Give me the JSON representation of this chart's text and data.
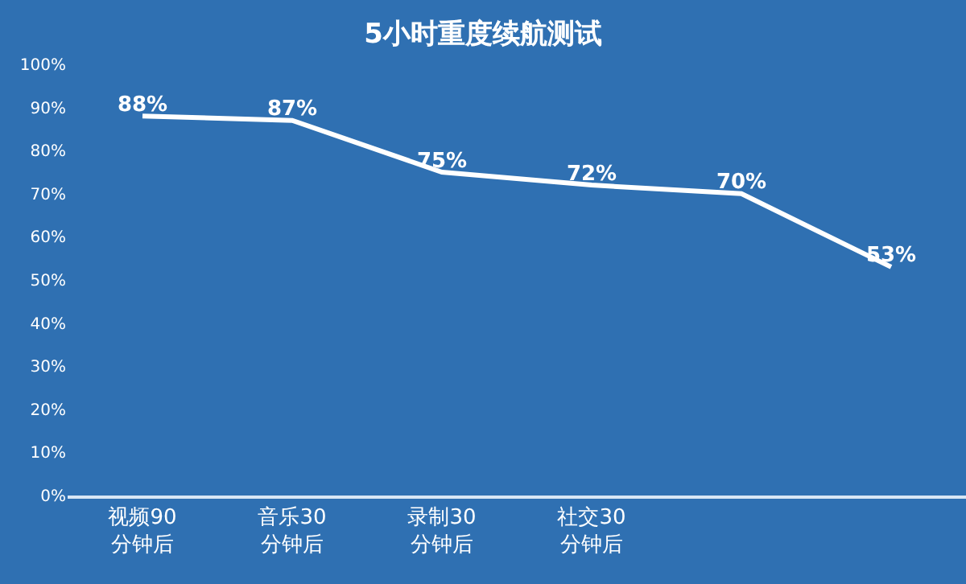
{
  "chart_data": {
    "type": "line",
    "title": "5小时重度续航测试",
    "categories": [
      "视频90\n分钟后",
      "音乐30\n分钟后",
      "录制30\n分钟后",
      "社交30\n分钟后",
      null,
      null
    ],
    "series": [
      {
        "color": "#ffffff",
        "values": [
          88,
          87,
          75,
          72,
          70,
          53
        ],
        "value_labels": [
          "88%",
          "87%",
          "75%",
          "72%",
          "70%",
          "53%"
        ]
      }
    ],
    "ylim": [
      0,
      100
    ],
    "yticks": [
      {
        "value": 0,
        "label": "0%"
      },
      {
        "value": 10,
        "label": "10%"
      },
      {
        "value": 20,
        "label": "20%"
      },
      {
        "value": 30,
        "label": "30%"
      },
      {
        "value": 40,
        "label": "40%"
      },
      {
        "value": 50,
        "label": "50%"
      },
      {
        "value": 60,
        "label": "60%"
      },
      {
        "value": 70,
        "label": "70%"
      },
      {
        "value": 80,
        "label": "80%"
      },
      {
        "value": 90,
        "label": "90%"
      },
      {
        "value": 100,
        "label": "100%"
      }
    ],
    "grid": false,
    "marker": "none",
    "line_style": "solid"
  }
}
